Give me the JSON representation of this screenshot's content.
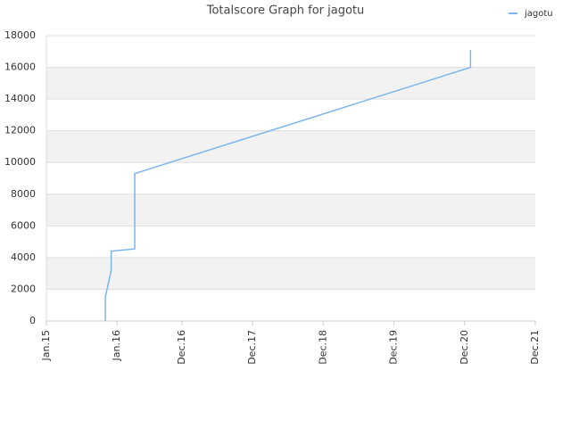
{
  "chart_data": {
    "type": "line",
    "title": "Totalscore Graph for jagotu",
    "x": [
      "2015-11",
      "2015-11",
      "2015-11",
      "2015-12",
      "2015-12",
      "2016-04",
      "2016-04",
      "2016-04",
      "2021-01",
      "2021-01"
    ],
    "series": [
      {
        "name": "jagotu",
        "color": "#7cb5ec",
        "values": [
          0,
          800,
          1500,
          3200,
          4400,
          4550,
          8800,
          9300,
          16000,
          17100
        ]
      }
    ],
    "xlim": [
      "2015-01",
      "2021-12"
    ],
    "xticks": [
      {
        "value": "2015-01",
        "label": "Jan.15"
      },
      {
        "value": "2016-01",
        "label": "Jan.16"
      },
      {
        "value": "2016-12",
        "label": "Dec.16"
      },
      {
        "value": "2017-12",
        "label": "Dec.17"
      },
      {
        "value": "2018-12",
        "label": "Dec.18"
      },
      {
        "value": "2019-12",
        "label": "Dec.19"
      },
      {
        "value": "2020-12",
        "label": "Dec.20"
      },
      {
        "value": "2021-12",
        "label": "Dec.21"
      }
    ],
    "ylim": [
      0,
      18000
    ],
    "yticks": [
      0,
      2000,
      4000,
      6000,
      8000,
      10000,
      12000,
      14000,
      16000,
      18000
    ],
    "grid": true,
    "legend": "top-right"
  }
}
